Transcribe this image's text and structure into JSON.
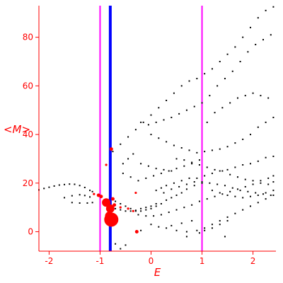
{
  "chart_data": {
    "type": "scatter",
    "xlabel": "E",
    "ylabel": "<M>",
    "xlim": [
      -2.2,
      2.45
    ],
    "ylim": [
      -8,
      93
    ],
    "x_ticks": [
      -2,
      -1,
      0,
      1,
      2
    ],
    "y_ticks": [
      0,
      20,
      40,
      60,
      80
    ],
    "grid": false,
    "colors": {
      "axis": "#ff0000",
      "points": "#000000",
      "highlight": "#ff0000",
      "vline_magenta": "#ff00ff",
      "vline_blue": "#0000ff"
    },
    "vertical_lines": [
      {
        "x": -1.0,
        "color": "#ff00ff"
      },
      {
        "x": -0.8,
        "color": "#0000ff"
      },
      {
        "x": 1.0,
        "color": "#ff00ff"
      }
    ],
    "black_points": [
      [
        -2.2,
        17.2
      ],
      [
        -2.1,
        17.8
      ],
      [
        -2.0,
        18.3
      ],
      [
        -1.9,
        18.8
      ],
      [
        -1.8,
        19.2
      ],
      [
        -1.7,
        19.4
      ],
      [
        -1.6,
        19.6
      ],
      [
        -1.5,
        19.5
      ],
      [
        -1.4,
        19.0
      ],
      [
        -1.3,
        18.2
      ],
      [
        -1.2,
        17.0
      ],
      [
        -1.15,
        16.5
      ],
      [
        -1.7,
        14.0
      ],
      [
        -1.55,
        14.8
      ],
      [
        -1.4,
        15.2
      ],
      [
        -1.3,
        14.9
      ],
      [
        -1.2,
        14.3
      ],
      [
        -1.55,
        12.0
      ],
      [
        -1.4,
        11.8
      ],
      [
        -1.25,
        11.8
      ],
      [
        -1.15,
        12.0
      ],
      [
        -0.7,
        12.5
      ],
      [
        -0.6,
        11.5
      ],
      [
        -0.5,
        10.5
      ],
      [
        -0.4,
        9.5
      ],
      [
        -0.3,
        8.5
      ],
      [
        -0.2,
        8.5
      ],
      [
        -0.1,
        9.0
      ],
      [
        0.0,
        9.5
      ],
      [
        0.1,
        10.5
      ],
      [
        0.2,
        11.5
      ],
      [
        0.3,
        13.0
      ],
      [
        0.4,
        14.0
      ],
      [
        0.5,
        15.0
      ],
      [
        0.6,
        16.0
      ],
      [
        0.7,
        17.5
      ],
      [
        0.85,
        19.0
      ],
      [
        1.0,
        20.0
      ],
      [
        -0.7,
        9.5
      ],
      [
        -0.6,
        9.0
      ],
      [
        -0.5,
        8.5
      ],
      [
        -0.4,
        8.5
      ],
      [
        -0.3,
        8.8
      ],
      [
        -0.2,
        9.5
      ],
      [
        -0.1,
        10.0
      ],
      [
        0.0,
        10.5
      ],
      [
        0.1,
        11.5
      ],
      [
        -0.25,
        7.0
      ],
      [
        -0.1,
        6.5
      ],
      [
        0.05,
        6.5
      ],
      [
        0.2,
        7.0
      ],
      [
        0.35,
        8.0
      ],
      [
        0.5,
        9.0
      ],
      [
        0.65,
        10.0
      ],
      [
        0.8,
        11.0
      ],
      [
        0.95,
        12.5
      ],
      [
        1.1,
        13.5
      ],
      [
        1.25,
        14.5
      ],
      [
        1.4,
        15.5
      ],
      [
        1.55,
        16.5
      ],
      [
        1.7,
        17.5
      ],
      [
        1.85,
        18.5
      ],
      [
        2.0,
        19.5
      ],
      [
        2.15,
        21.0
      ],
      [
        2.3,
        22.0
      ],
      [
        2.4,
        23.0
      ],
      [
        0.0,
        3.0
      ],
      [
        0.15,
        2.0
      ],
      [
        0.3,
        1.5
      ],
      [
        0.5,
        0.5
      ],
      [
        0.7,
        0.0
      ],
      [
        0.9,
        0.5
      ],
      [
        1.05,
        1.5
      ],
      [
        1.2,
        3.0
      ],
      [
        1.35,
        4.5
      ],
      [
        1.5,
        6.0
      ],
      [
        1.65,
        7.5
      ],
      [
        1.8,
        9.0
      ],
      [
        1.95,
        10.5
      ],
      [
        2.1,
        12.0
      ],
      [
        2.25,
        13.5
      ],
      [
        2.4,
        15.0
      ],
      [
        0.95,
        -0.5
      ],
      [
        1.05,
        0.5
      ],
      [
        1.2,
        1.5
      ],
      [
        1.35,
        3.0
      ],
      [
        1.5,
        4.5
      ],
      [
        0.1,
        17.0
      ],
      [
        0.2,
        18.0
      ],
      [
        0.3,
        19.0
      ],
      [
        0.45,
        20.0
      ],
      [
        0.6,
        21.0
      ],
      [
        0.75,
        22.0
      ],
      [
        0.9,
        22.0
      ],
      [
        1.05,
        23.0
      ],
      [
        1.2,
        24.0
      ],
      [
        1.35,
        25.0
      ],
      [
        1.5,
        25.5
      ],
      [
        1.65,
        26.5
      ],
      [
        1.8,
        27.5
      ],
      [
        1.95,
        28.0
      ],
      [
        2.1,
        29.0
      ],
      [
        2.25,
        30.5
      ],
      [
        2.4,
        31.0
      ],
      [
        0.5,
        30.0
      ],
      [
        0.65,
        29.5
      ],
      [
        0.8,
        28.0
      ],
      [
        0.95,
        27.5
      ],
      [
        1.1,
        26.5
      ],
      [
        1.25,
        25.5
      ],
      [
        1.4,
        25.0
      ],
      [
        1.55,
        23.5
      ],
      [
        1.7,
        22.5
      ],
      [
        1.85,
        21.5
      ],
      [
        2.0,
        21.0
      ],
      [
        2.15,
        20.0
      ],
      [
        2.3,
        19.5
      ],
      [
        2.4,
        20.5
      ],
      [
        0.0,
        40.0
      ],
      [
        0.15,
        38.5
      ],
      [
        0.3,
        37.0
      ],
      [
        0.45,
        35.5
      ],
      [
        0.6,
        34.5
      ],
      [
        0.75,
        33.5
      ],
      [
        0.9,
        32.5
      ],
      [
        1.05,
        33.0
      ],
      [
        1.2,
        33.5
      ],
      [
        1.35,
        34.0
      ],
      [
        1.5,
        35.0
      ],
      [
        1.65,
        36.5
      ],
      [
        1.8,
        38.0
      ],
      [
        1.95,
        40.0
      ],
      [
        2.1,
        43.0
      ],
      [
        2.25,
        45.0
      ],
      [
        2.4,
        47.0
      ],
      [
        1.1,
        45.0
      ],
      [
        1.25,
        49.0
      ],
      [
        1.4,
        51.0
      ],
      [
        1.55,
        53.0
      ],
      [
        1.7,
        55.0
      ],
      [
        1.85,
        56.0
      ],
      [
        2.0,
        57.0
      ],
      [
        2.15,
        56.0
      ],
      [
        2.3,
        55.0
      ],
      [
        -0.2,
        45.0
      ],
      [
        -0.05,
        44.0
      ],
      [
        0.1,
        45.0
      ],
      [
        0.25,
        46.0
      ],
      [
        0.4,
        47.0
      ],
      [
        0.55,
        48.5
      ],
      [
        0.7,
        50.0
      ],
      [
        0.85,
        51.5
      ],
      [
        1.0,
        53.0
      ],
      [
        1.15,
        56.0
      ],
      [
        1.3,
        60.0
      ],
      [
        1.45,
        63.0
      ],
      [
        1.6,
        66.0
      ],
      [
        1.75,
        70.0
      ],
      [
        1.9,
        74.0
      ],
      [
        2.05,
        77.0
      ],
      [
        2.2,
        79.0
      ],
      [
        2.35,
        81.0
      ],
      [
        -0.75,
        33.0
      ],
      [
        -0.6,
        36.0
      ],
      [
        -0.45,
        39.0
      ],
      [
        -0.3,
        42.0
      ],
      [
        -0.15,
        45.0
      ],
      [
        0.0,
        48.0
      ],
      [
        0.15,
        51.0
      ],
      [
        0.3,
        54.0
      ],
      [
        0.45,
        57.0
      ],
      [
        0.6,
        60.0
      ],
      [
        0.75,
        62.0
      ],
      [
        0.9,
        63.0
      ],
      [
        1.05,
        65.0
      ],
      [
        1.2,
        67.0
      ],
      [
        1.35,
        70.0
      ],
      [
        1.5,
        73.0
      ],
      [
        1.65,
        76.0
      ],
      [
        1.8,
        80.0
      ],
      [
        1.95,
        84.0
      ],
      [
        2.1,
        88.0
      ],
      [
        2.25,
        91.0
      ],
      [
        2.4,
        92.5
      ],
      [
        -0.55,
        28.0
      ],
      [
        -0.45,
        30.0
      ],
      [
        -0.35,
        32.0
      ],
      [
        -0.2,
        28.0
      ],
      [
        -0.05,
        27.0
      ],
      [
        0.1,
        26.0
      ],
      [
        0.25,
        25.5
      ],
      [
        0.4,
        25.0
      ],
      [
        -0.55,
        24.0
      ],
      [
        -0.4,
        22.5
      ],
      [
        -0.25,
        21.0
      ],
      [
        -0.1,
        22.0
      ],
      [
        0.05,
        23.0
      ],
      [
        0.2,
        24.0
      ],
      [
        0.35,
        25.0
      ],
      [
        0.5,
        26.0
      ],
      [
        0.65,
        27.0
      ],
      [
        0.8,
        28.5
      ],
      [
        0.95,
        29.5
      ],
      [
        0.25,
        16.0
      ],
      [
        0.4,
        17.5
      ],
      [
        0.55,
        18.5
      ],
      [
        0.7,
        19.5
      ],
      [
        0.85,
        20.5
      ],
      [
        1.0,
        20.5
      ],
      [
        1.15,
        20.0
      ],
      [
        1.3,
        19.5
      ],
      [
        1.45,
        19.0
      ],
      [
        1.6,
        18.0
      ],
      [
        1.75,
        17.0
      ],
      [
        1.9,
        16.5
      ],
      [
        2.05,
        16.0
      ],
      [
        2.2,
        15.5
      ],
      [
        2.35,
        15.0
      ],
      [
        1.2,
        17.0
      ],
      [
        1.35,
        16.0
      ],
      [
        1.5,
        15.0
      ],
      [
        1.65,
        14.5
      ],
      [
        1.8,
        14.0
      ],
      [
        1.95,
        14.5
      ],
      [
        2.1,
        15.0
      ],
      [
        2.25,
        16.0
      ],
      [
        2.4,
        17.0
      ],
      [
        -0.7,
        -5.0
      ],
      [
        -0.6,
        -7.0
      ],
      [
        -0.5,
        -5.5
      ],
      [
        0.7,
        -2.0
      ],
      [
        1.45,
        -2.0
      ],
      [
        -0.2,
        0.5
      ],
      [
        0.4,
        2.5
      ],
      [
        0.6,
        3.5
      ],
      [
        0.8,
        4.5
      ]
    ],
    "red_points": [
      {
        "x": -0.78,
        "y": 5.0,
        "size": "large"
      },
      {
        "x": -0.82,
        "y": 6.5,
        "size": "medium"
      },
      {
        "x": -0.8,
        "y": 9.5,
        "size": "medium"
      },
      {
        "x": -0.88,
        "y": 12.0,
        "size": "medium"
      },
      {
        "x": -0.98,
        "y": 14.5,
        "size": "small"
      },
      {
        "x": -1.03,
        "y": 15.0,
        "size": "small"
      },
      {
        "x": -1.12,
        "y": 15.5,
        "size": "tiny"
      },
      {
        "x": -0.75,
        "y": 13.5,
        "size": "small"
      },
      {
        "x": -0.72,
        "y": 11.0,
        "size": "small"
      },
      {
        "x": -0.6,
        "y": 10.0,
        "size": "tiny"
      },
      {
        "x": -0.45,
        "y": 9.5,
        "size": "tiny"
      },
      {
        "x": -0.35,
        "y": 8.5,
        "size": "tiny"
      },
      {
        "x": -0.3,
        "y": 16.0,
        "size": "tiny"
      },
      {
        "x": -0.88,
        "y": 27.5,
        "size": "tiny"
      },
      {
        "x": -0.78,
        "y": 34.0,
        "size": "small"
      },
      {
        "x": -0.28,
        "y": 0.0,
        "size": "small"
      }
    ]
  }
}
